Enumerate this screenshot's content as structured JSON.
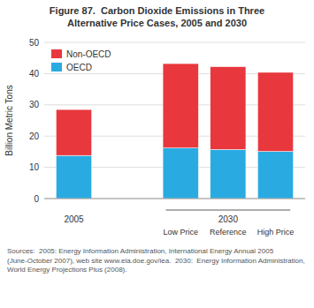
{
  "chart_data": {
    "type": "bar",
    "stacked": true,
    "title": "Figure 87.  Carbon Dioxide Emissions in Three",
    "subtitle": "Alternative Price Cases, 2005 and 2030",
    "y_label": "Billion Metric Tons",
    "categories": [
      "2005",
      "Low Price",
      "Reference",
      "High Price"
    ],
    "series": [
      {
        "name": "OECD",
        "color": "#29ABE2",
        "values": [
          13.8,
          16.2,
          15.7,
          15.1
        ]
      },
      {
        "name": "Non-OECD",
        "color": "#E8383D",
        "values": [
          14.7,
          27.0,
          26.5,
          25.3
        ]
      }
    ],
    "ylim": [
      0,
      50
    ],
    "yticks": [
      0,
      10,
      20,
      30,
      40,
      50
    ],
    "grid": true,
    "legend": "upper left",
    "annotations": [
      "2030",
      "Sources:  2005: Energy Information Administration, International Energy Annual 2005 (June-October 2007), web site www.eia.doe.gov/iea.  2030:  Energy Information Administration, World Energy Projections Plus (2008)."
    ]
  }
}
